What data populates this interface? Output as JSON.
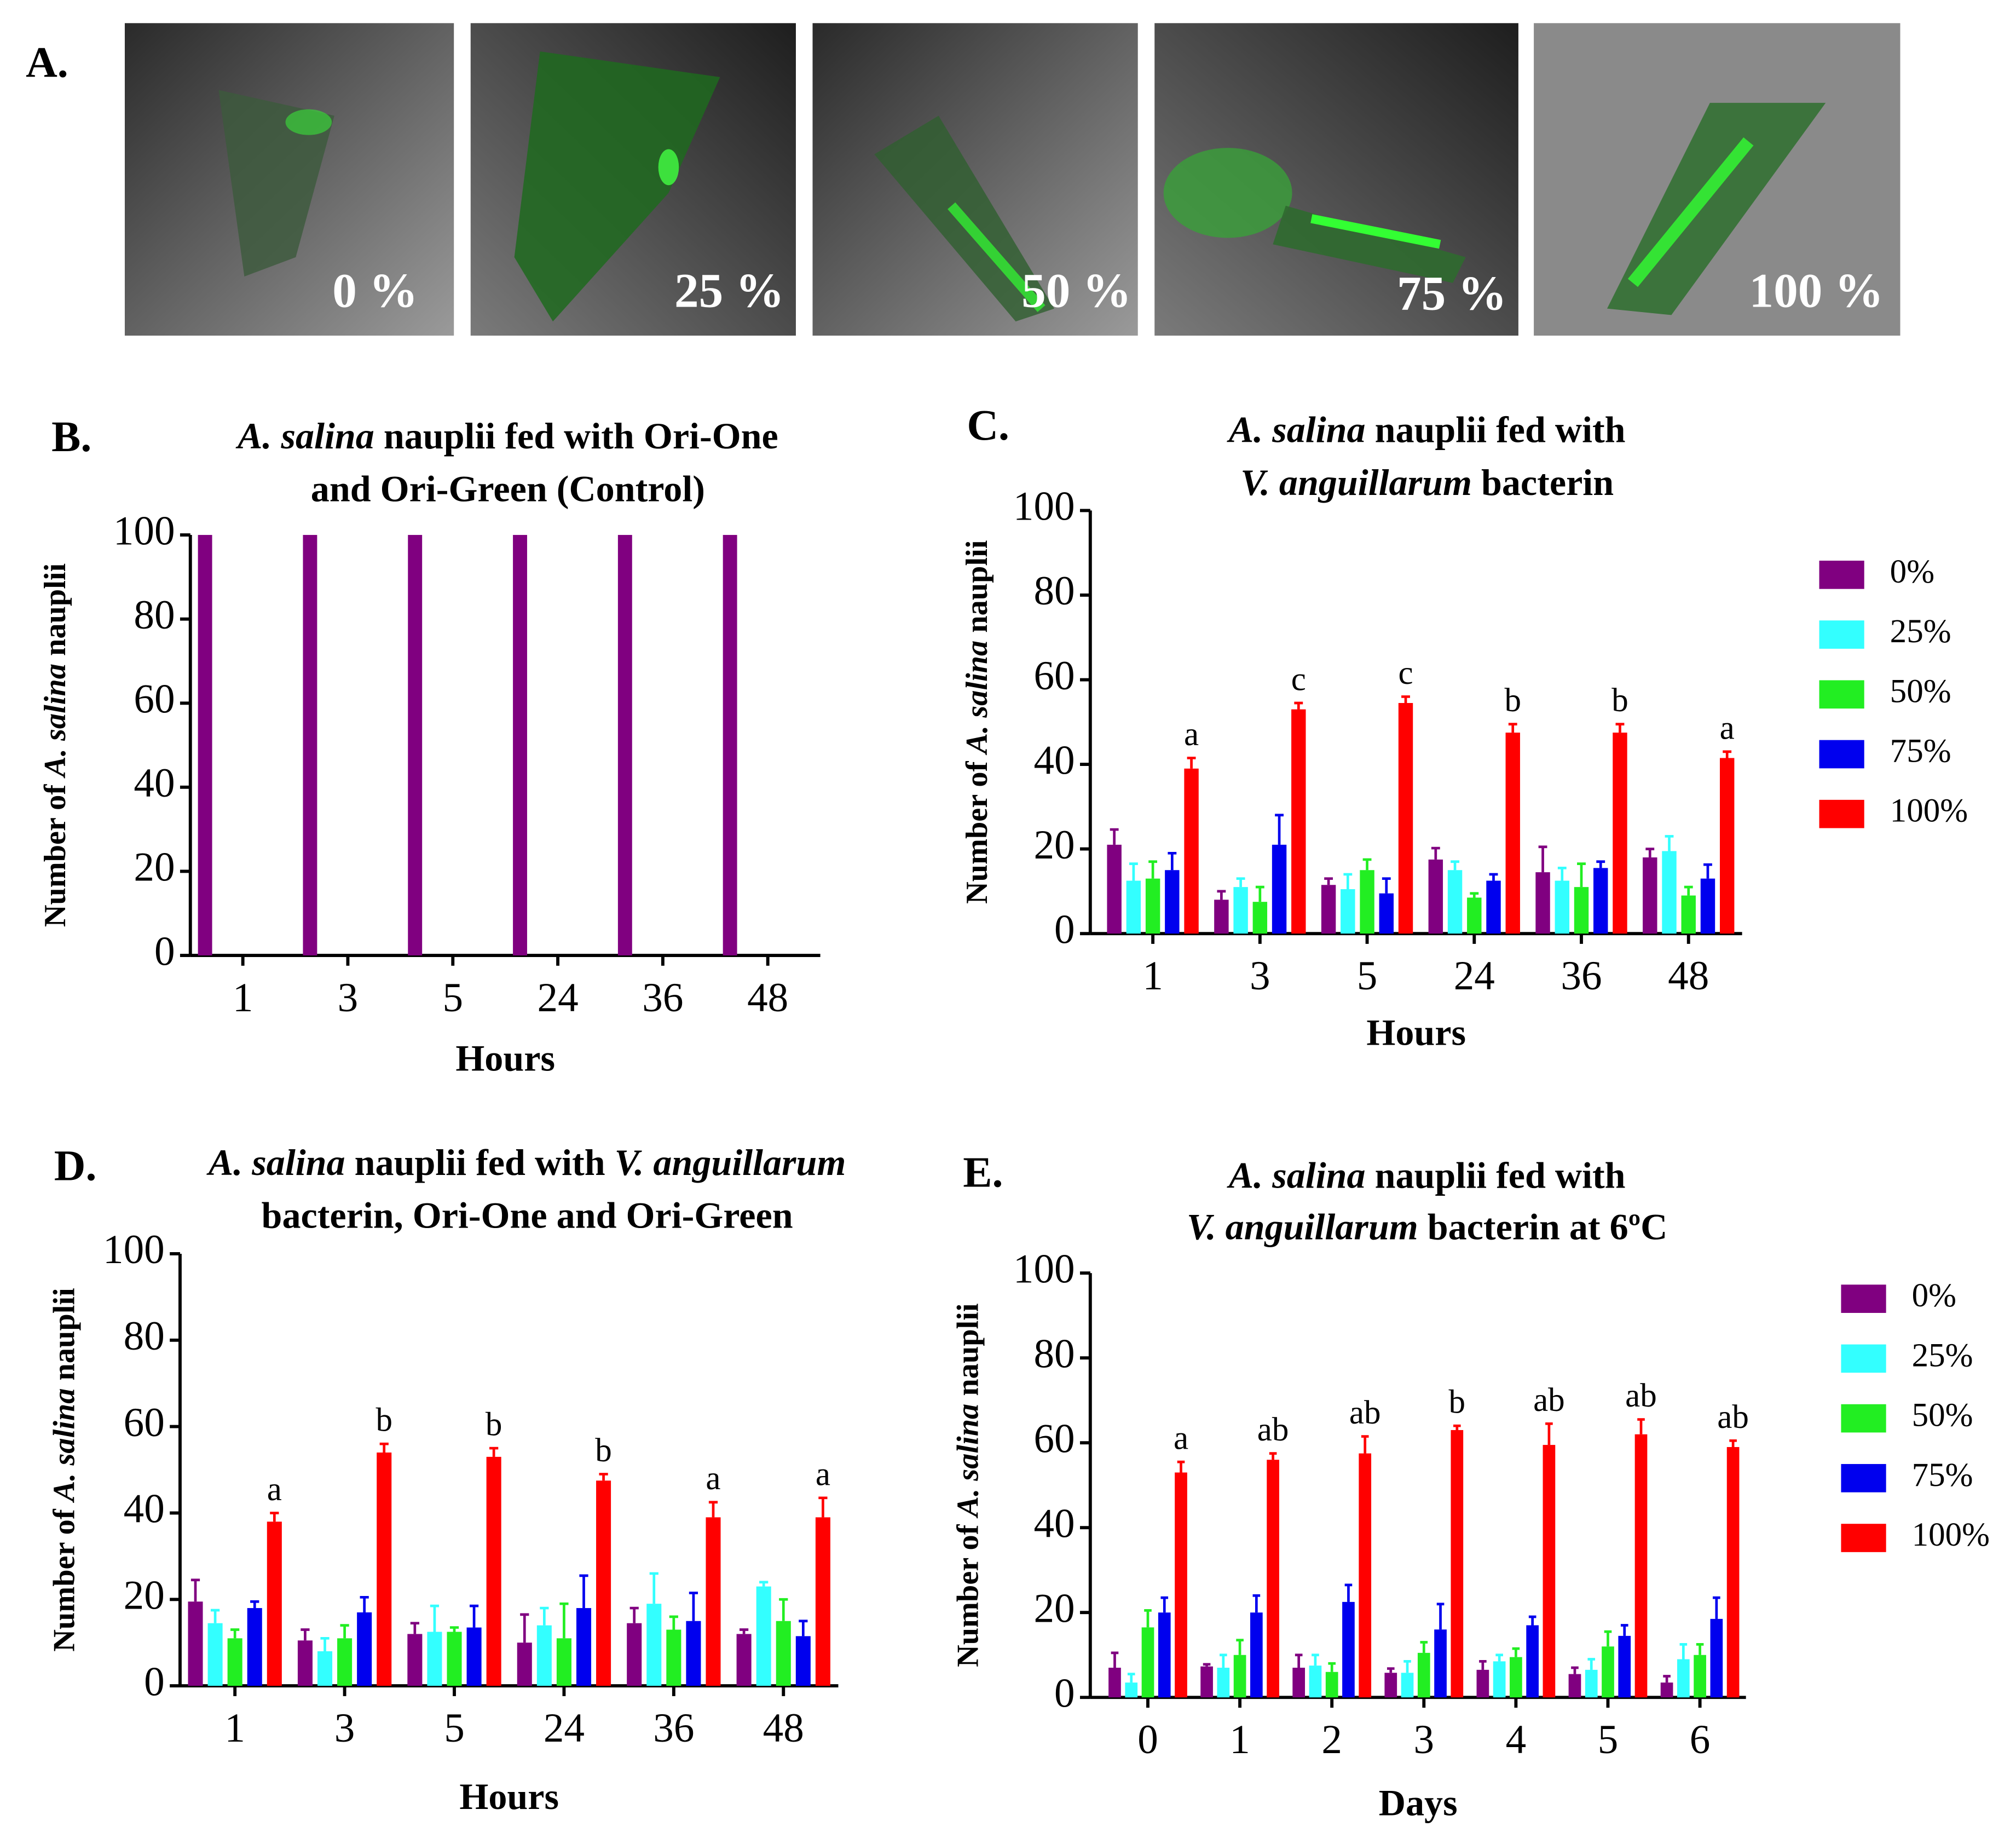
{
  "panel_a": {
    "label": "A.",
    "images": [
      "0 %",
      "25 %",
      "50 %",
      "75 %",
      "100 %"
    ]
  },
  "chart_data": [
    {
      "type": "bar",
      "panel_label": "B.",
      "title": [
        [
          {
            "text": "A. salina",
            "italic": true
          },
          {
            "text": " nauplii fed with Ori-One"
          }
        ],
        [
          {
            "text": "and Ori-Green (Control)"
          }
        ]
      ],
      "ylabel": [
        {
          "text": "Number of "
        },
        {
          "text": "A. salina",
          "italic": true
        },
        {
          "text": " nauplii"
        }
      ],
      "xlabel": "Hours",
      "categories": [
        "1",
        "3",
        "5",
        "24",
        "36",
        "48"
      ],
      "series": [
        {
          "color": "#800080",
          "values": [
            100,
            100,
            100,
            100,
            100,
            100
          ]
        }
      ],
      "ylim": [
        0,
        100
      ],
      "yticks": [
        0,
        20,
        40,
        60,
        80,
        100
      ]
    },
    {
      "type": "bar",
      "panel_label": "C.",
      "title": [
        [
          {
            "text": "A. salina",
            "italic": true
          },
          {
            "text": " nauplii fed with"
          }
        ],
        [
          {
            "text": "V. anguillarum",
            "italic": true
          },
          {
            "text": " bacterin"
          }
        ]
      ],
      "ylabel": [
        {
          "text": "Number of "
        },
        {
          "text": "A. salina",
          "italic": true
        },
        {
          "text": " nauplii"
        }
      ],
      "xlabel": "Hours",
      "categories": [
        "1",
        "3",
        "5",
        "24",
        "36",
        "48"
      ],
      "series": [
        {
          "name": "0%",
          "color": "#800080",
          "values": [
            21,
            8,
            11.5,
            17.5,
            14.5,
            18
          ],
          "errors": [
            3.6,
            2,
            1.5,
            2.7,
            6,
            2
          ]
        },
        {
          "name": "25%",
          "color": "#33ffff",
          "values": [
            12.5,
            11,
            10.5,
            15,
            12.5,
            19.5
          ],
          "errors": [
            4,
            2,
            3.5,
            2,
            3,
            3.5
          ]
        },
        {
          "name": "50%",
          "color": "#22ee22",
          "values": [
            13,
            7.5,
            15,
            8.5,
            11,
            9
          ],
          "errors": [
            4,
            3.5,
            2.5,
            1,
            5.5,
            2
          ]
        },
        {
          "name": "75%",
          "color": "#0000ee",
          "values": [
            15,
            21,
            9.5,
            12.5,
            15.5,
            13
          ],
          "errors": [
            4,
            7,
            3.5,
            1.5,
            1.5,
            3.3
          ]
        },
        {
          "name": "100%",
          "color": "#ff0000",
          "values": [
            39,
            53,
            54.5,
            47.5,
            47.5,
            41.5
          ],
          "errors": [
            2.5,
            1.5,
            1.5,
            2,
            2,
            1.5
          ],
          "letters": [
            "a",
            "c",
            "c",
            "b",
            "b",
            "a"
          ]
        }
      ],
      "ylim": [
        0,
        100
      ],
      "yticks": [
        0,
        20,
        40,
        60,
        80,
        100
      ]
    },
    {
      "type": "bar",
      "panel_label": "D.",
      "title": [
        [
          {
            "text": "A. salina",
            "italic": true
          },
          {
            "text": " nauplii  fed with "
          },
          {
            "text": "V. anguillarum",
            "italic": true
          }
        ],
        [
          {
            "text": "bacterin, Ori-One and Ori-Green"
          }
        ]
      ],
      "ylabel": [
        {
          "text": "Number of "
        },
        {
          "text": "A. salina",
          "italic": true
        },
        {
          "text": " nauplii"
        }
      ],
      "xlabel": "Hours",
      "categories": [
        "1",
        "3",
        "5",
        "24",
        "36",
        "48"
      ],
      "series": [
        {
          "color": "#800080",
          "values": [
            19.5,
            10.5,
            12,
            10,
            14.5,
            12
          ],
          "errors": [
            5,
            2.5,
            2.5,
            6.5,
            3.5,
            1
          ]
        },
        {
          "color": "#33ffff",
          "values": [
            14.5,
            8,
            12.5,
            14,
            19,
            23
          ],
          "errors": [
            3,
            3,
            6,
            4,
            7,
            1
          ]
        },
        {
          "color": "#22ee22",
          "values": [
            11,
            11,
            12.5,
            11,
            13,
            15
          ],
          "errors": [
            2,
            3,
            1,
            8,
            3,
            5
          ]
        },
        {
          "color": "#0000ee",
          "values": [
            18,
            17,
            13.5,
            18,
            15,
            11.5
          ],
          "errors": [
            1.5,
            3.5,
            5,
            7.5,
            6.5,
            3.5
          ]
        },
        {
          "color": "#ff0000",
          "values": [
            38,
            54,
            53,
            47.5,
            39,
            39
          ],
          "errors": [
            2,
            2,
            2,
            1.5,
            3.5,
            4.5
          ],
          "letters": [
            "a",
            "b",
            "b",
            "b",
            "a",
            "a"
          ]
        }
      ],
      "ylim": [
        0,
        100
      ],
      "yticks": [
        0,
        20,
        40,
        60,
        80,
        100
      ]
    },
    {
      "type": "bar",
      "panel_label": "E.",
      "title": [
        [
          {
            "text": "A. salina",
            "italic": true
          },
          {
            "text": " nauplii fed with"
          }
        ],
        [
          {
            "text": "V. anguillarum",
            "italic": true
          },
          {
            "text": " bacterin at 6ºC"
          }
        ]
      ],
      "ylabel": [
        {
          "text": "Number of "
        },
        {
          "text": "A. salina",
          "italic": true
        },
        {
          "text": " nauplii"
        }
      ],
      "xlabel": "Days",
      "categories": [
        "0",
        "1",
        "2",
        "3",
        "4",
        "5",
        "6"
      ],
      "series": [
        {
          "name": "0%",
          "color": "#800080",
          "values": [
            7,
            7.3,
            7,
            5.8,
            6.5,
            5.5,
            3.5
          ],
          "errors": [
            3.5,
            0.5,
            3,
            1,
            2,
            1.5,
            1.5
          ]
        },
        {
          "name": "25%",
          "color": "#33ffff",
          "values": [
            3.5,
            7,
            7.5,
            5.8,
            8.5,
            6.5,
            9
          ],
          "errors": [
            2,
            3,
            2.5,
            2.7,
            1.5,
            2.5,
            3.5
          ]
        },
        {
          "name": "50%",
          "color": "#22ee22",
          "values": [
            16.5,
            10,
            6,
            10.5,
            9.5,
            12,
            10
          ],
          "errors": [
            4,
            3.5,
            2,
            2.5,
            2,
            3.5,
            2.5
          ]
        },
        {
          "name": "75%",
          "color": "#0000ee",
          "values": [
            20,
            20,
            22.5,
            16,
            17,
            14.5,
            18.5
          ],
          "errors": [
            3.5,
            4,
            4,
            6,
            2,
            2.5,
            5
          ]
        },
        {
          "name": "100%",
          "color": "#ff0000",
          "values": [
            53,
            56,
            57.5,
            63,
            59.5,
            62,
            59
          ],
          "errors": [
            2.5,
            1.5,
            4,
            1,
            5,
            3.5,
            1.5
          ],
          "letters": [
            "a",
            "ab",
            "ab",
            "b",
            "ab",
            "ab",
            "ab"
          ]
        }
      ],
      "ylim": [
        0,
        100
      ],
      "yticks": [
        0,
        20,
        40,
        60,
        80,
        100
      ]
    }
  ]
}
